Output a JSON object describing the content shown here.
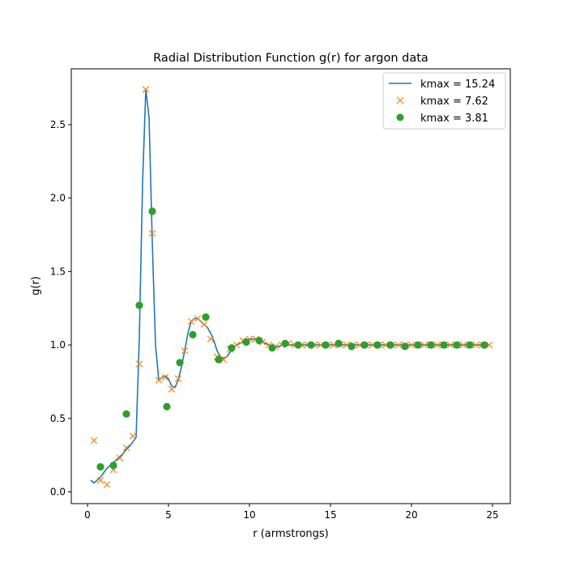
{
  "chart_data": {
    "type": "line",
    "title": "Radial Distribution Function g(r) for argon data",
    "xlabel": "r (armstrongs)",
    "ylabel": "g(r)",
    "xlim": [
      -1.0,
      26.1
    ],
    "ylim": [
      -0.08,
      2.88
    ],
    "xticks": [
      0,
      5,
      10,
      15,
      20,
      25
    ],
    "yticks": [
      0.0,
      0.5,
      1.0,
      1.5,
      2.0,
      2.5
    ],
    "xtick_labels": [
      "0",
      "5",
      "10",
      "15",
      "20",
      "25"
    ],
    "ytick_labels": [
      "0.0",
      "0.5",
      "1.0",
      "1.5",
      "2.0",
      "2.5"
    ],
    "grid": false,
    "legend_position": "top-right",
    "series": [
      {
        "name": "kmax = 15.24",
        "style": "line",
        "color": "#1f77b4",
        "x": [
          0.2,
          0.4,
          0.6,
          0.8,
          1.0,
          1.2,
          1.4,
          1.6,
          1.8,
          2.0,
          2.2,
          2.4,
          2.6,
          2.8,
          3.0,
          3.2,
          3.4,
          3.6,
          3.8,
          4.0,
          4.2,
          4.4,
          4.6,
          4.8,
          5.0,
          5.2,
          5.4,
          5.6,
          5.8,
          6.0,
          6.2,
          6.4,
          6.6,
          6.8,
          7.0,
          7.2,
          7.4,
          7.6,
          7.8,
          8.0,
          8.2,
          8.4,
          8.6,
          8.8,
          9.0,
          9.2,
          9.4,
          9.6,
          9.8,
          10.0,
          10.2,
          10.4,
          10.6,
          10.8,
          11.0,
          11.2,
          11.4,
          11.6,
          11.8,
          12.0,
          12.5,
          13.0,
          13.5,
          14.0,
          14.5,
          15.0,
          15.5,
          16.0,
          16.5,
          17.0,
          17.5,
          18.0,
          18.5,
          19.0,
          19.5,
          20.0,
          20.5,
          21.0,
          21.5,
          22.0,
          22.5,
          23.0,
          23.5,
          24.0,
          24.5
        ],
        "values": [
          0.08,
          0.06,
          0.08,
          0.1,
          0.13,
          0.16,
          0.18,
          0.2,
          0.22,
          0.24,
          0.26,
          0.29,
          0.31,
          0.34,
          0.37,
          1.05,
          2.1,
          2.74,
          2.55,
          1.7,
          1.0,
          0.76,
          0.78,
          0.79,
          0.77,
          0.72,
          0.71,
          0.76,
          0.85,
          0.96,
          1.08,
          1.16,
          1.18,
          1.18,
          1.16,
          1.14,
          1.12,
          1.08,
          1.03,
          0.96,
          0.92,
          0.91,
          0.92,
          0.95,
          0.98,
          1.0,
          1.01,
          1.02,
          1.03,
          1.04,
          1.04,
          1.04,
          1.03,
          1.02,
          1.01,
          1.0,
          0.99,
          0.99,
          0.99,
          1.0,
          1.0,
          1.0,
          1.0,
          1.0,
          1.0,
          1.0,
          1.0,
          1.0,
          1.0,
          1.0,
          1.0,
          1.0,
          1.0,
          1.0,
          1.0,
          1.0,
          1.0,
          1.0,
          1.0,
          1.0,
          1.0,
          1.0,
          1.0,
          1.0,
          1.0
        ]
      },
      {
        "name": "kmax = 7.62",
        "style": "x",
        "color": "#ff7f0e",
        "x": [
          0.4,
          0.8,
          1.2,
          1.6,
          2.0,
          2.4,
          2.8,
          3.2,
          3.6,
          4.0,
          4.4,
          4.8,
          5.2,
          5.6,
          6.0,
          6.4,
          6.8,
          7.2,
          7.6,
          8.0,
          8.4,
          8.8,
          9.2,
          9.6,
          10.0,
          10.4,
          10.8,
          11.2,
          11.6,
          12.0,
          12.4,
          12.8,
          13.2,
          13.6,
          14.0,
          14.4,
          14.8,
          15.2,
          15.6,
          16.0,
          16.4,
          16.8,
          17.2,
          17.6,
          18.0,
          18.4,
          18.8,
          19.2,
          19.6,
          20.0,
          20.4,
          20.8,
          21.2,
          21.6,
          22.0,
          22.4,
          22.8,
          23.2,
          23.6,
          24.0,
          24.4,
          24.8
        ],
        "values": [
          0.35,
          0.08,
          0.05,
          0.15,
          0.23,
          0.3,
          0.38,
          0.87,
          2.74,
          1.76,
          0.76,
          0.78,
          0.7,
          0.77,
          0.96,
          1.16,
          1.18,
          1.14,
          1.04,
          0.92,
          0.9,
          0.97,
          1.0,
          1.03,
          1.04,
          1.04,
          1.02,
          1.0,
          0.99,
          1.0,
          1.01,
          1.0,
          1.0,
          1.0,
          1.0,
          1.0,
          1.0,
          1.0,
          1.0,
          1.0,
          1.0,
          1.0,
          1.0,
          1.0,
          1.0,
          1.0,
          1.0,
          1.0,
          1.0,
          1.0,
          1.0,
          1.0,
          1.0,
          1.0,
          1.0,
          1.0,
          1.0,
          1.0,
          1.0,
          1.0,
          1.0,
          1.0
        ]
      },
      {
        "name": "kmax = 3.81",
        "style": "dot",
        "color": "#2ca02c",
        "x": [
          0.8,
          1.6,
          2.4,
          3.2,
          4.0,
          4.9,
          5.7,
          6.5,
          7.3,
          8.1,
          8.9,
          9.8,
          10.6,
          11.4,
          12.2,
          13.0,
          13.8,
          14.7,
          15.5,
          16.3,
          17.1,
          17.9,
          18.7,
          19.6,
          20.4,
          21.2,
          22.0,
          22.8,
          23.6,
          24.5
        ],
        "values": [
          0.17,
          0.18,
          0.53,
          1.27,
          1.91,
          0.58,
          0.88,
          1.07,
          1.19,
          0.9,
          0.98,
          1.02,
          1.03,
          0.98,
          1.01,
          1.0,
          1.0,
          1.0,
          1.01,
          0.99,
          1.0,
          1.0,
          1.0,
          0.99,
          1.0,
          1.0,
          1.0,
          1.0,
          1.0,
          1.0
        ]
      }
    ]
  }
}
